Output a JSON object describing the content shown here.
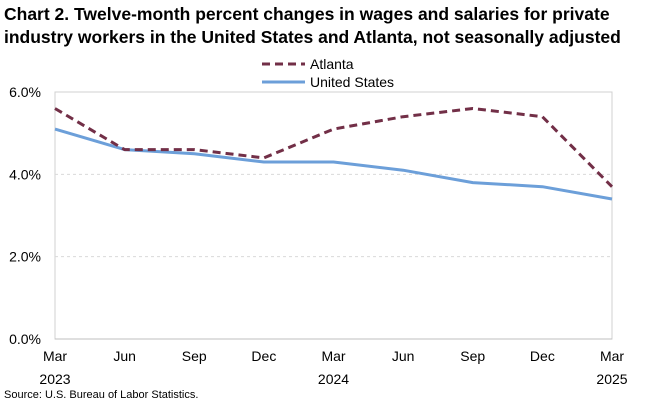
{
  "title": {
    "line1": "Chart 2. Twelve-month percent changes in wages and salaries for private",
    "line2": "industry workers in the United States and Atlanta, not seasonally adjusted"
  },
  "source": "Source: U.S. Bureau of Labor Statistics.",
  "chart_data": {
    "type": "line",
    "title": "Chart 2. Twelve-month percent changes in wages and salaries for private industry workers in the United States and Atlanta, not seasonally adjusted",
    "xlabel": "",
    "ylabel": "",
    "categories": [
      "Mar 2023",
      "Jun",
      "Sep",
      "Dec",
      "Mar 2024",
      "Jun",
      "Sep",
      "Dec",
      "Mar 2025"
    ],
    "x_tick_labels": [
      {
        "month": "Mar",
        "year": "2023"
      },
      {
        "month": "Jun",
        "year": ""
      },
      {
        "month": "Sep",
        "year": ""
      },
      {
        "month": "Dec",
        "year": ""
      },
      {
        "month": "Mar",
        "year": "2024"
      },
      {
        "month": "Jun",
        "year": ""
      },
      {
        "month": "Sep",
        "year": ""
      },
      {
        "month": "Dec",
        "year": ""
      },
      {
        "month": "Mar",
        "year": "2025"
      }
    ],
    "y_ticks": [
      0,
      2,
      4,
      6
    ],
    "y_tick_labels": [
      "0.0%",
      "2.0%",
      "4.0%",
      "6.0%"
    ],
    "ylim": [
      0,
      6
    ],
    "grid": true,
    "legend_position": "top-center",
    "series": [
      {
        "name": "Atlanta",
        "style": "dashed",
        "color": "#722f47",
        "values": [
          5.6,
          4.6,
          4.6,
          4.4,
          5.1,
          5.4,
          5.6,
          5.4,
          3.7
        ]
      },
      {
        "name": "United States",
        "style": "solid",
        "color": "#6c9fd9",
        "values": [
          5.1,
          4.6,
          4.5,
          4.3,
          4.3,
          4.1,
          3.8,
          3.7,
          3.4
        ]
      }
    ]
  }
}
